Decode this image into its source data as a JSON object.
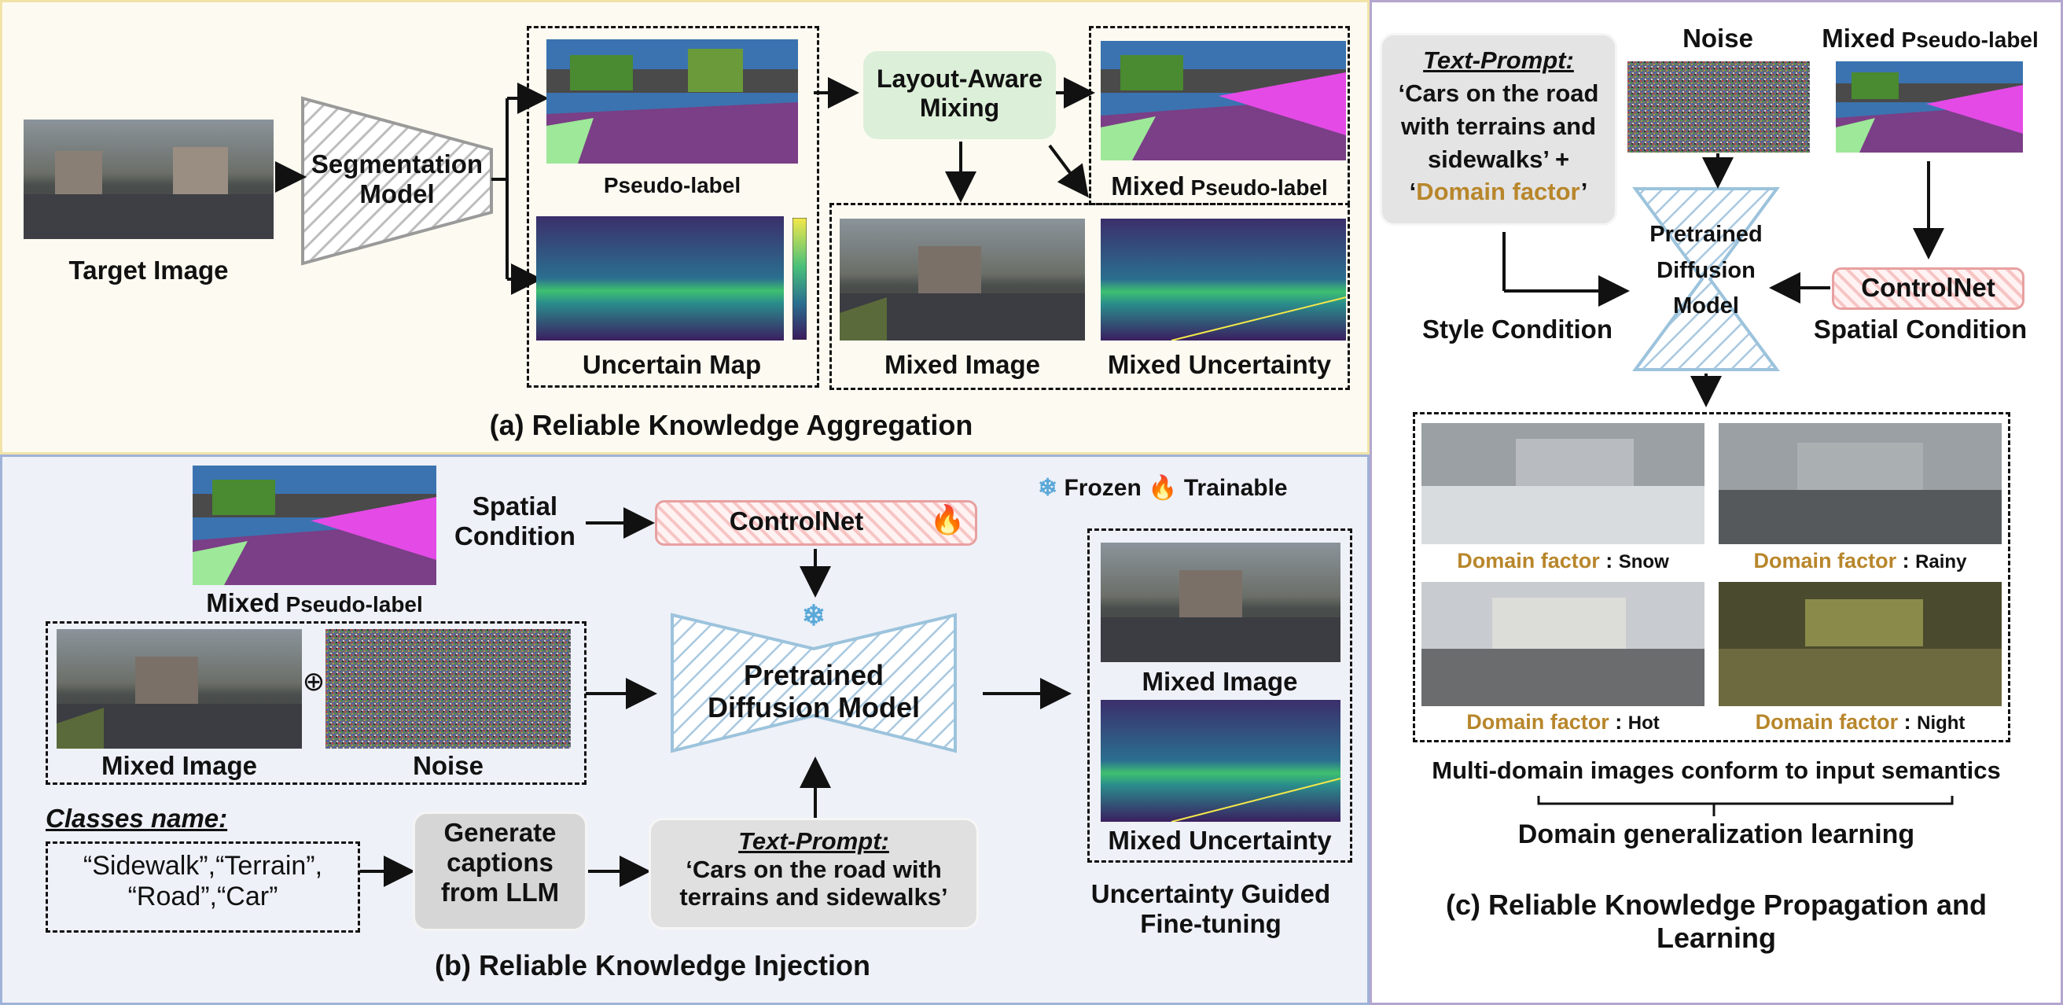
{
  "panel_a": {
    "title": "(a) Reliable Knowledge Aggregation",
    "target_image": "Target Image",
    "segmentation_model": [
      "Segmentation",
      "Model"
    ],
    "pseudo_label": "Pseudo-label",
    "uncertain_map": "Uncertain Map",
    "layout_mixing": [
      "Layout-Aware",
      "Mixing"
    ],
    "mixed_pseudo_label_prefix": "Mixed",
    "mixed_pseudo_label_suffix": "Pseudo-label",
    "mixed_image": "Mixed Image",
    "mixed_uncertainty": "Mixed Uncertainty"
  },
  "panel_b": {
    "title": "(b) Reliable Knowledge Injection",
    "mixed_pseudo_label_prefix": "Mixed",
    "mixed_pseudo_label_suffix": "Pseudo-label",
    "spatial_condition": [
      "Spatial",
      "Condition"
    ],
    "controlnet": "ControlNet",
    "legend_frozen": "Frozen",
    "legend_trainable": "Trainable",
    "mixed_image": "Mixed Image",
    "noise": "Noise",
    "oplus": "⊕",
    "diffusion": [
      "Pretrained",
      "Diffusion Model"
    ],
    "out_mixed_image": "Mixed Image",
    "out_mixed_uncertainty": "Mixed Uncertainty",
    "fine_tuning": [
      "Uncertainty Guided",
      "Fine-tuning"
    ],
    "classes_name": "Classes name:",
    "classes": [
      "“Sidewalk”,“Terrain”,",
      "“Road”,“Car”"
    ],
    "llm": [
      "Generate",
      "captions",
      "from LLM"
    ],
    "text_prompt_head": "Text-Prompt:",
    "text_prompt": [
      "‘Cars on the road with",
      "terrains and sidewalks’"
    ]
  },
  "panel_c": {
    "title": [
      "(c) Reliable Knowledge Propagation and",
      "Learning"
    ],
    "text_prompt_head": "Text-Prompt:",
    "text_prompt": [
      "‘Cars on the road",
      "with terrains and",
      "sidewalks’"
    ],
    "plus": "+",
    "domain_factor_quoted": "Domain factor",
    "noise": "Noise",
    "mixed_pseudo_label_prefix": "Mixed",
    "mixed_pseudo_label_suffix": "Pseudo-label",
    "diffusion": [
      "Pretrained",
      "Diffusion",
      "Model"
    ],
    "controlnet": "ControlNet",
    "style_condition": "Style Condition",
    "spatial_condition": "Spatial Condition",
    "domain_factor": "Domain factor",
    "factors": [
      "Snow",
      "Rainy",
      "Hot",
      "Night"
    ],
    "conform": "Multi-domain images conform to input semantics",
    "dg_learning": "Domain generalization learning"
  },
  "colors": {
    "panel_a_bg": "#fdfbf1",
    "panel_a_border": "#f1e3a8",
    "panel_b_bg": "#eef1f8",
    "panel_b_border": "#9fb2d8",
    "panel_c_bg": "#ffffff",
    "panel_c_border": "#b4a6cf",
    "accent_gold": "#b8862b",
    "mixing_box": "#dcefd8",
    "controlnet_border": "#e8a0a0",
    "diffusion_hatch": "#a8c8e0"
  }
}
